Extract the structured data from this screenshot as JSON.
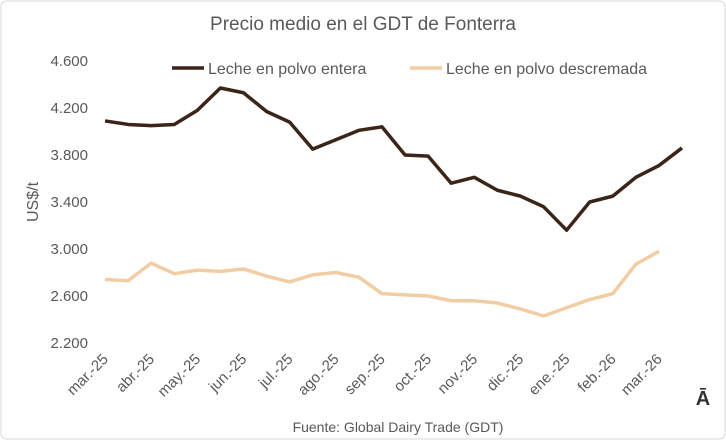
{
  "chart_data": {
    "type": "line",
    "title": "Precio medio en el GDT de Fonterra",
    "y_label": "US$/t",
    "source": "Fuente: Global Dairy Trade (GDT)",
    "annotation": "Ā",
    "categories": [
      "mar.-25",
      null,
      "abr.-25",
      null,
      "may.-25",
      null,
      "jun.-25",
      null,
      "jul.-25",
      null,
      "ago.-25",
      null,
      "sep.-25",
      null,
      "oct.-25",
      null,
      "nov.-25",
      null,
      "dic.-25",
      null,
      "ene.-25",
      null,
      "feb.-26",
      null,
      "mar.-26",
      null
    ],
    "series": [
      {
        "name": "Leche en polvo entera",
        "color": "#3b2418",
        "values": [
          4090,
          4060,
          4050,
          4060,
          4180,
          4370,
          4330,
          4170,
          4080,
          3850,
          3930,
          4010,
          4040,
          3800,
          3790,
          3560,
          3610,
          3500,
          3450,
          3360,
          3160,
          3400,
          3450,
          3610,
          3710,
          3860
        ]
      },
      {
        "name": "Leche en polvo descremada",
        "color": "#f2cda3",
        "values": [
          2740,
          2730,
          2880,
          2790,
          2820,
          2810,
          2830,
          2770,
          2720,
          2780,
          2800,
          2760,
          2620,
          2610,
          2600,
          2560,
          2560,
          2540,
          2490,
          2430,
          2500,
          2570,
          2620,
          2870,
          2980,
          null
        ]
      }
    ],
    "ylim": [
      2200,
      4600
    ],
    "yticks": [
      {
        "value": 2200,
        "label": "2.200"
      },
      {
        "value": 2600,
        "label": "2.600"
      },
      {
        "value": 3000,
        "label": "3.000"
      },
      {
        "value": 3400,
        "label": "3.400"
      },
      {
        "value": 3800,
        "label": "3.800"
      },
      {
        "value": 4200,
        "label": "4.200"
      },
      {
        "value": 4600,
        "label": "4.600"
      }
    ],
    "grid": false,
    "legend": "top"
  }
}
